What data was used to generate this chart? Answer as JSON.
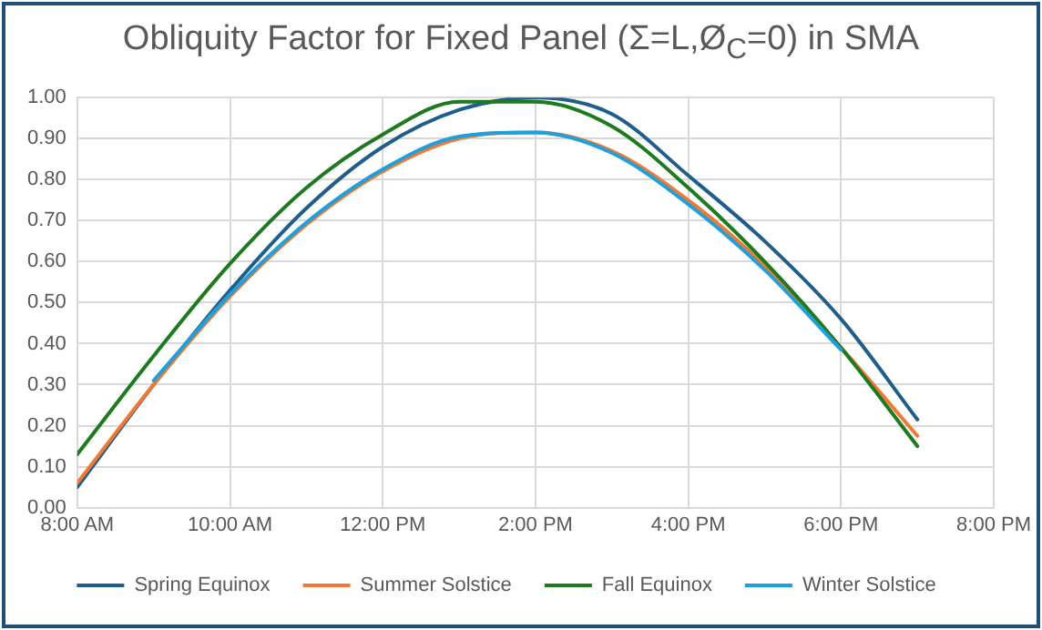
{
  "chart_data": {
    "type": "line",
    "title": "Obliquity Factor for Fixed Panel (Σ=L,Ø$_{C}$=0) in SMA",
    "x": [
      8,
      9,
      10,
      11,
      12,
      13,
      14,
      15,
      16,
      17,
      18,
      19
    ],
    "series": [
      {
        "name": "Spring Equinox",
        "color": "#1f5e8c",
        "values": [
          0.05,
          0.3,
          0.53,
          0.73,
          0.88,
          0.97,
          1.0,
          0.96,
          0.81,
          0.65,
          0.46,
          0.215
        ]
      },
      {
        "name": "Summer Solstice",
        "color": "#f07a33",
        "values": [
          0.06,
          0.3,
          0.515,
          0.69,
          0.82,
          0.9,
          0.915,
          0.87,
          0.75,
          0.59,
          0.39,
          0.175
        ]
      },
      {
        "name": "Fall Equinox",
        "color": "#1e7a1e",
        "values": [
          0.13,
          0.37,
          0.595,
          0.78,
          0.91,
          0.99,
          0.99,
          0.93,
          0.78,
          0.6,
          0.39,
          0.15
        ]
      },
      {
        "name": "Winter Solstice",
        "color": "#1fa0dc",
        "x": [
          9,
          10,
          11,
          12,
          13,
          14,
          15,
          16,
          17,
          18
        ],
        "values": [
          0.31,
          0.52,
          0.695,
          0.825,
          0.905,
          0.915,
          0.865,
          0.74,
          0.58,
          0.385
        ]
      }
    ],
    "xlim": [
      8,
      20
    ],
    "xticks": [
      {
        "value": 8,
        "label": "8:00 AM"
      },
      {
        "value": 10,
        "label": "10:00 AM"
      },
      {
        "value": 12,
        "label": "12:00 PM"
      },
      {
        "value": 14,
        "label": "2:00 PM"
      },
      {
        "value": 16,
        "label": "4:00 PM"
      },
      {
        "value": 18,
        "label": "6:00 PM"
      },
      {
        "value": 20,
        "label": "8:00 PM"
      }
    ],
    "ylim": [
      0,
      1
    ],
    "yticks": [
      {
        "value": 0,
        "label": "0.00"
      },
      {
        "value": 0.1,
        "label": "0.10"
      },
      {
        "value": 0.2,
        "label": "0.20"
      },
      {
        "value": 0.3,
        "label": "0.30"
      },
      {
        "value": 0.4,
        "label": "0.40"
      },
      {
        "value": 0.5,
        "label": "0.50"
      },
      {
        "value": 0.6,
        "label": "0.60"
      },
      {
        "value": 0.7,
        "label": "0.70"
      },
      {
        "value": 0.8,
        "label": "0.80"
      },
      {
        "value": 0.9,
        "label": "0.90"
      },
      {
        "value": 1,
        "label": "1.00"
      }
    ],
    "grid": true,
    "legend": "bottom",
    "marker": "none",
    "line_style": "solid"
  }
}
